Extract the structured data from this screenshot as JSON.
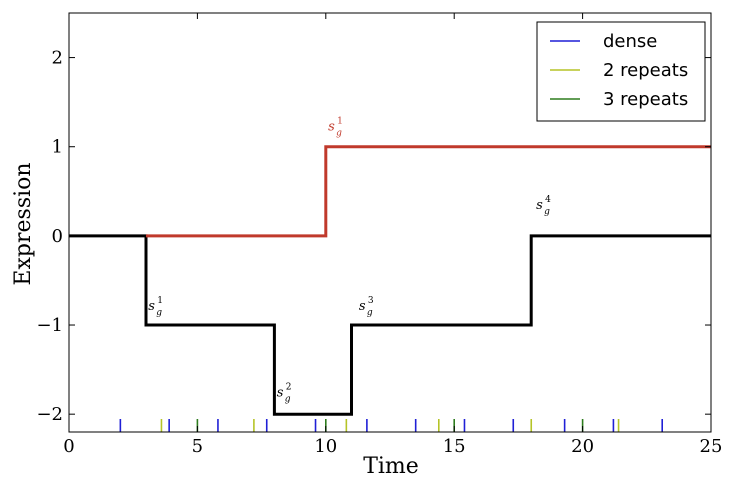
{
  "chart_data": {
    "type": "line",
    "xlabel": "Time",
    "ylabel": "Expression",
    "xlim": [
      0,
      25
    ],
    "ylim": [
      -2.2,
      2.5
    ],
    "x_ticks": [
      0,
      5,
      10,
      15,
      20,
      25
    ],
    "y_ticks": [
      2,
      1,
      0,
      -1,
      -2
    ],
    "x_tick_labels": [
      "0",
      "5",
      "10",
      "15",
      "20",
      "25"
    ],
    "y_tick_labels": [
      "2",
      "1",
      "0",
      "−1",
      "−2"
    ],
    "grid": false,
    "legend_position": "top-right",
    "series": [
      {
        "color": "#c0392b",
        "points": [
          [
            3,
            0
          ],
          [
            10,
            0
          ],
          [
            10,
            1
          ],
          [
            25,
            1
          ]
        ]
      },
      {
        "color": "#000000",
        "points": [
          [
            0,
            0
          ],
          [
            3,
            0
          ],
          [
            3,
            -1
          ],
          [
            8,
            -1
          ],
          [
            8,
            -2
          ],
          [
            11,
            -2
          ],
          [
            11,
            -1
          ],
          [
            18,
            -1
          ],
          [
            18,
            0
          ],
          [
            25,
            0
          ]
        ]
      }
    ],
    "legend": [
      {
        "label": "dense",
        "color": "#1f1fd6"
      },
      {
        "label": "2 repeats",
        "color": "#b5c427"
      },
      {
        "label": "3 repeats",
        "color": "#2e7d1e"
      }
    ],
    "sampling_ticks": {
      "dense": [
        2,
        3.9,
        5.8,
        7.7,
        9.6,
        11.6,
        13.5,
        15.4,
        17.3,
        19.3,
        21.2,
        23.1
      ],
      "two_repeats": [
        3.6,
        7.2,
        10.8,
        14.4,
        18.0,
        21.4
      ],
      "three_repeats": [
        5.0,
        10.0,
        15.0,
        20.0
      ]
    },
    "annotations": [
      {
        "base": "s",
        "sub": "g",
        "sup": "1",
        "x": 10.4,
        "y": 1.18,
        "color": "#c0392b"
      },
      {
        "base": "s",
        "sub": "g",
        "sup": "1",
        "x": 3.4,
        "y": -0.83,
        "color": "#000000"
      },
      {
        "base": "s",
        "sub": "g",
        "sup": "2",
        "x": 8.4,
        "y": -1.8,
        "color": "#000000"
      },
      {
        "base": "s",
        "sub": "g",
        "sup": "3",
        "x": 11.6,
        "y": -0.83,
        "color": "#000000"
      },
      {
        "base": "s",
        "sub": "g",
        "sup": "4",
        "x": 18.5,
        "y": 0.3,
        "color": "#000000"
      }
    ]
  }
}
